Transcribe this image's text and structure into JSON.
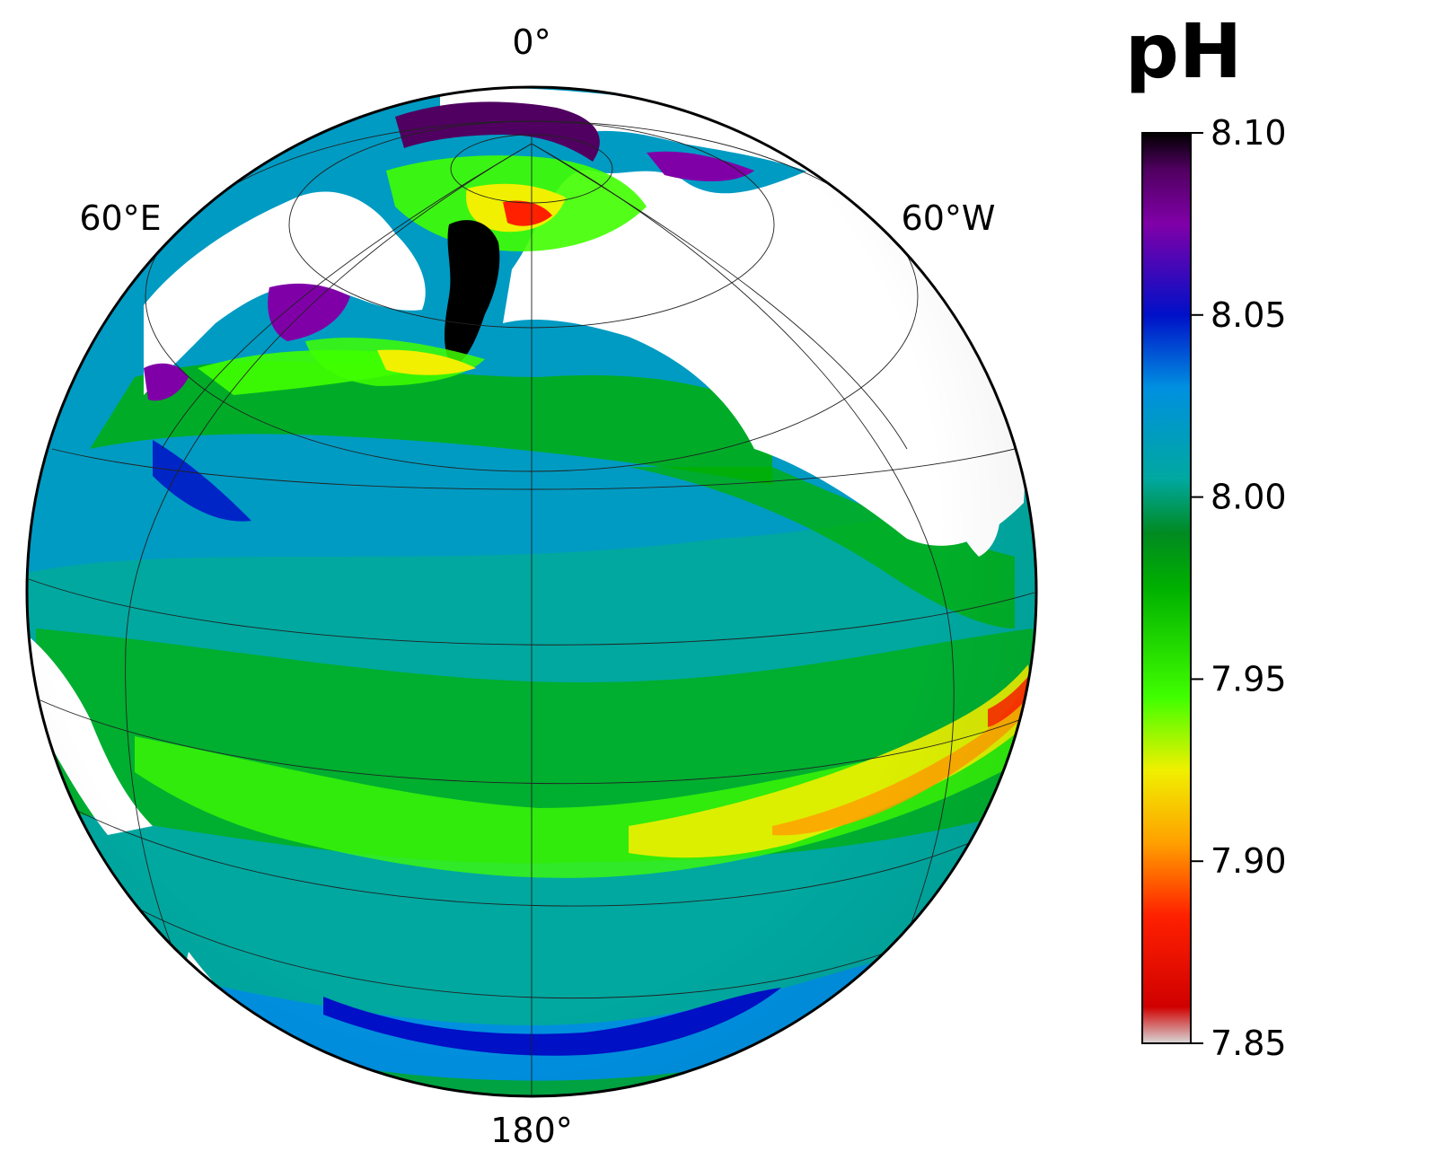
{
  "title": "pH",
  "meridian_labels": {
    "top": "0°",
    "bottom": "180°",
    "left": "60°E",
    "right": "60°W"
  },
  "colorbar": {
    "ticks": [
      "8.10",
      "8.05",
      "8.00",
      "7.95",
      "7.90",
      "7.85"
    ],
    "min": 7.85,
    "max": 8.1,
    "stops": [
      {
        "value": 7.85,
        "color": "#d8d8d8"
      },
      {
        "value": 7.86,
        "color": "#d00000"
      },
      {
        "value": 7.885,
        "color": "#ff2000"
      },
      {
        "value": 7.905,
        "color": "#ffa000"
      },
      {
        "value": 7.925,
        "color": "#f0f000"
      },
      {
        "value": 7.945,
        "color": "#40ff00"
      },
      {
        "value": 7.975,
        "color": "#00b000"
      },
      {
        "value": 7.99,
        "color": "#008a20"
      },
      {
        "value": 8.005,
        "color": "#00a8a0"
      },
      {
        "value": 8.03,
        "color": "#0090e0"
      },
      {
        "value": 8.05,
        "color": "#0010c8"
      },
      {
        "value": 8.075,
        "color": "#8000a8"
      },
      {
        "value": 8.09,
        "color": "#500060"
      },
      {
        "value": 8.1,
        "color": "#000000"
      }
    ]
  },
  "colors": {
    "land": "#ffffff",
    "ocean_base": "#00a8a0",
    "outline": "#000000",
    "graticule": "#222222"
  }
}
